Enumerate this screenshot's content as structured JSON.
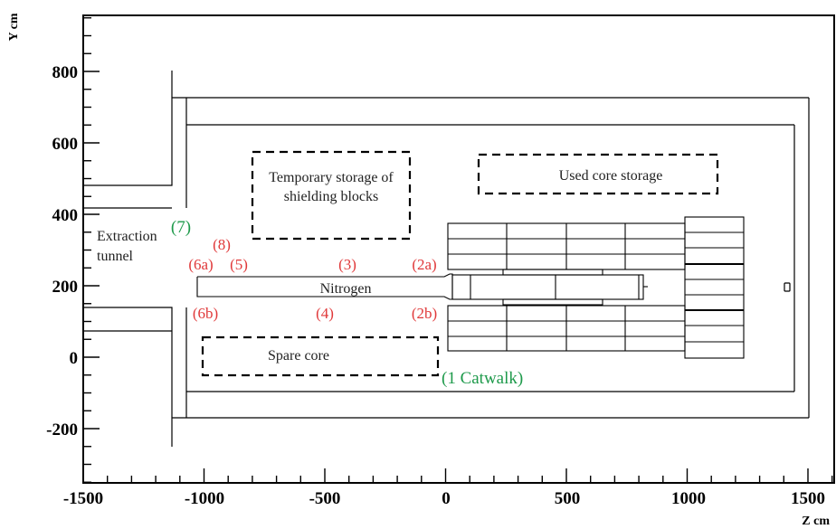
{
  "axes": {
    "x_title": "Z cm",
    "y_title": "Y cm",
    "x_ticks": [
      "-1500",
      "-1000",
      "-500",
      "0",
      "500",
      "1000",
      "1500"
    ],
    "y_ticks": [
      "800",
      "600",
      "400",
      "200",
      "0",
      "-200"
    ]
  },
  "regions": {
    "temp_storage_line1": "Temporary storage of",
    "temp_storage_line2": "shielding blocks",
    "used_core": "Used core storage",
    "spare_core": "Spare core",
    "nitrogen": "Nitrogen",
    "extraction_line1": "Extraction",
    "extraction_line2": "tunnel"
  },
  "positions": {
    "p7": "(7)",
    "p8": "(8)",
    "p6a": "(6a)",
    "p5": "(5)",
    "p3": "(3)",
    "p2a": "(2a)",
    "p6b": "(6b)",
    "p4": "(4)",
    "p2b": "(2b)",
    "p1": "(1 Catwalk)"
  },
  "colors": {
    "position_labels": "#e0393a",
    "highlight_labels": "#1e9a4b"
  }
}
